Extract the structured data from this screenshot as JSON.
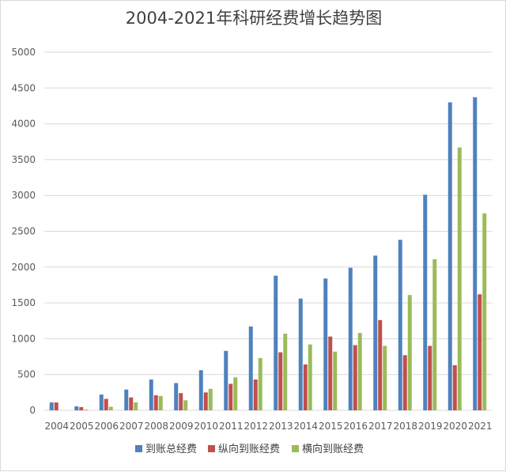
{
  "chart_data": {
    "type": "bar",
    "title": "2004-2021年科研经费增长趋势图",
    "categories": [
      "2004",
      "2005",
      "2006",
      "2007",
      "2008",
      "2009",
      "2010",
      "2011",
      "2012",
      "2013",
      "2014",
      "2015",
      "2016",
      "2017",
      "2018",
      "2019",
      "2020",
      "2021"
    ],
    "series": [
      {
        "name": "到账总经费",
        "color": "#4f81bd",
        "values": [
          110,
          55,
          220,
          290,
          430,
          380,
          560,
          830,
          1170,
          1880,
          1560,
          1840,
          1990,
          2160,
          2380,
          3010,
          4300,
          4370
        ]
      },
      {
        "name": "纵向到账经费",
        "color": "#c0504d",
        "values": [
          110,
          45,
          160,
          180,
          210,
          240,
          250,
          370,
          430,
          810,
          640,
          1030,
          910,
          1260,
          770,
          900,
          630,
          1620
        ]
      },
      {
        "name": "横向到账经费",
        "color": "#9bbb59",
        "values": [
          0,
          10,
          50,
          110,
          200,
          140,
          300,
          460,
          730,
          1070,
          920,
          820,
          1080,
          900,
          1610,
          2110,
          3670,
          2750
        ]
      }
    ],
    "ylim": [
      0,
      5000
    ],
    "yticks": [
      0,
      500,
      1000,
      1500,
      2000,
      2500,
      3000,
      3500,
      4000,
      4500,
      5000
    ],
    "grid": true,
    "legend_position": "bottom"
  }
}
